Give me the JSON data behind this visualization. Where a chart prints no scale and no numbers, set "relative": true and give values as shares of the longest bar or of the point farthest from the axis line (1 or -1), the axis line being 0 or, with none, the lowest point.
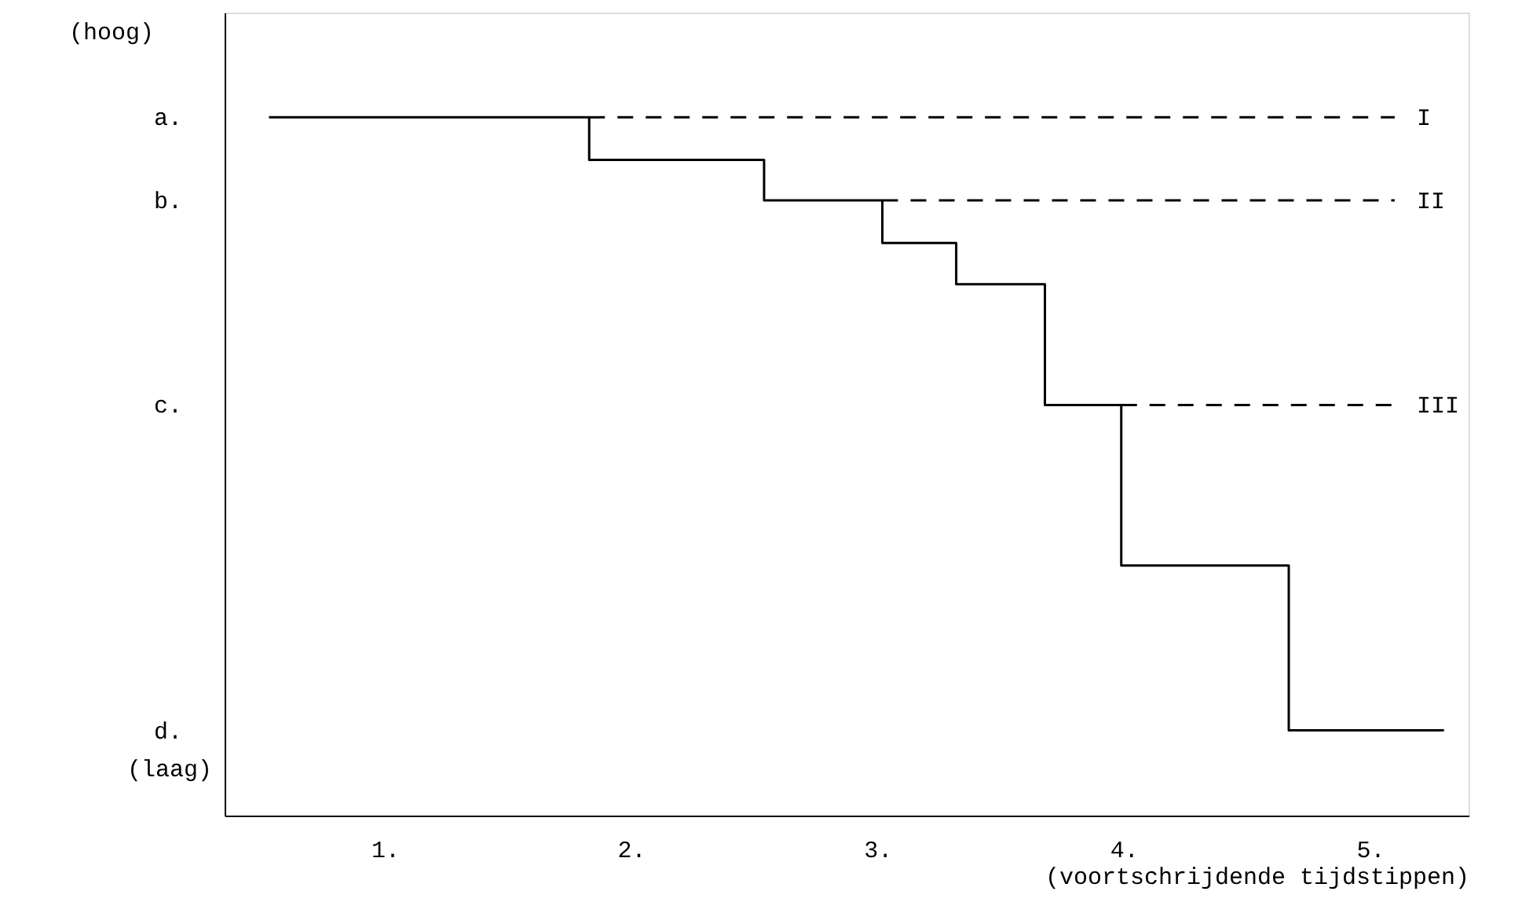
{
  "chart_data": {
    "type": "step",
    "relative": true,
    "xlabel": "(voortschrijdende tijdstippen)",
    "annotations": [
      "(hoog)",
      "(laag)",
      "a.",
      "b.",
      "c.",
      "d."
    ],
    "xlim": [
      0.35,
      5.4
    ],
    "xticks": [
      {
        "value": 1,
        "label": "1."
      },
      {
        "value": 2,
        "label": "2."
      },
      {
        "value": 3,
        "label": "3."
      },
      {
        "value": 4,
        "label": "4."
      },
      {
        "value": 5,
        "label": "5."
      }
    ],
    "grid": false,
    "marker": "none",
    "series": [
      {
        "color": "#000000",
        "line_style": "solid",
        "x": [
          0.53,
          1.83,
          2.54,
          3.02,
          3.32,
          3.68,
          3.99,
          4.67,
          5.3
        ],
        "values": [
          1.0,
          0.939,
          0.881,
          0.82,
          0.761,
          0.588,
          0.358,
          0.122,
          0.122
        ]
      },
      {
        "type": "line",
        "name": "I",
        "color": "#000000",
        "line_style": "dashed",
        "x": [
          1.83,
          5.1
        ],
        "values": [
          1.0,
          1.0
        ]
      },
      {
        "type": "line",
        "name": "II",
        "color": "#000000",
        "line_style": "dashed",
        "x": [
          3.02,
          5.1
        ],
        "values": [
          0.881,
          0.881
        ]
      },
      {
        "type": "line",
        "name": "III",
        "color": "#000000",
        "line_style": "dashed",
        "x": [
          3.99,
          5.1
        ],
        "values": [
          0.588,
          0.588
        ]
      }
    ]
  }
}
